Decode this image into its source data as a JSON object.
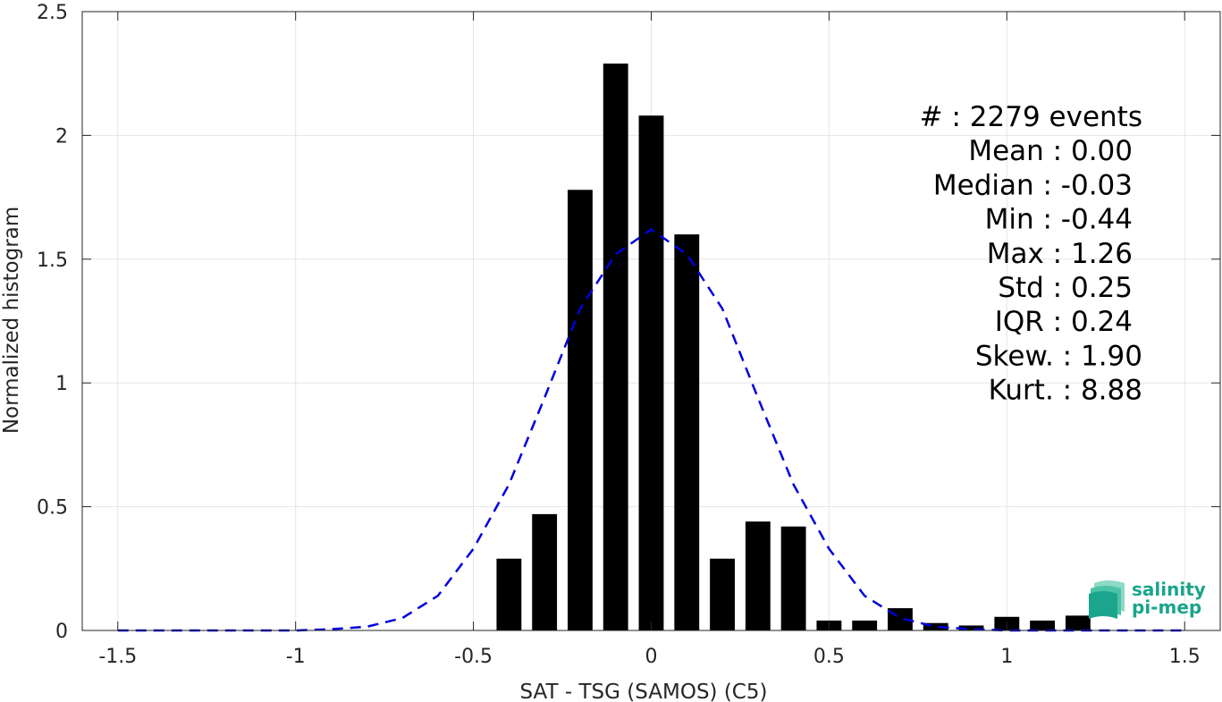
{
  "chart_data": {
    "type": "bar",
    "xlabel": "SAT - TSG (SAMOS) (C5)",
    "ylabel": "Normalized histogram",
    "xlim": [
      -1.6,
      1.6
    ],
    "ylim": [
      0,
      2.5
    ],
    "grid": true,
    "xticks": [
      -1.5,
      -1,
      -0.5,
      0,
      0.5,
      1,
      1.5
    ],
    "xtick_labels": [
      "-1.5",
      "-1",
      "-0.5",
      "0",
      "0.5",
      "1",
      "1.5"
    ],
    "yticks": [
      0,
      0.5,
      1,
      1.5,
      2,
      2.5
    ],
    "ytick_labels": [
      "0",
      "0.5",
      "1",
      "1.5",
      "2",
      "2.5"
    ],
    "bin_width": 0.1,
    "bar_width": 0.07,
    "bars": {
      "x": [
        -0.4,
        -0.3,
        -0.2,
        -0.1,
        0.0,
        0.1,
        0.2,
        0.3,
        0.4,
        0.5,
        0.6,
        0.7,
        0.8,
        0.9,
        1.0,
        1.1,
        1.2
      ],
      "values": [
        0.29,
        0.47,
        1.78,
        2.29,
        2.08,
        1.6,
        0.29,
        0.44,
        0.42,
        0.04,
        0.04,
        0.09,
        0.03,
        0.02,
        0.055,
        0.04,
        0.06
      ],
      "color": "#000000"
    },
    "fit_curve": {
      "style": "dashed",
      "color": "#0000dd",
      "x": [
        -1.5,
        -1.4,
        -1.3,
        -1.2,
        -1.1,
        -1.0,
        -0.9,
        -0.8,
        -0.7,
        -0.6,
        -0.5,
        -0.4,
        -0.3,
        -0.2,
        -0.1,
        0.0,
        0.1,
        0.2,
        0.3,
        0.4,
        0.5,
        0.6,
        0.7,
        0.8,
        0.9,
        1.0,
        1.1,
        1.2,
        1.3,
        1.4,
        1.5
      ],
      "y": [
        0,
        0,
        0,
        0,
        0,
        0,
        0.005,
        0.015,
        0.05,
        0.14,
        0.33,
        0.59,
        0.94,
        1.3,
        1.52,
        1.62,
        1.52,
        1.3,
        0.94,
        0.59,
        0.33,
        0.14,
        0.05,
        0.015,
        0.005,
        0,
        0,
        0,
        0,
        0,
        0
      ]
    },
    "stats": [
      {
        "label": "#  : 2279 events"
      },
      {
        "label": "Mean : 0.00"
      },
      {
        "label": "Median : -0.03"
      },
      {
        "label": "Min : -0.44"
      },
      {
        "label": "Max : 1.26"
      },
      {
        "label": "Std : 0.25"
      },
      {
        "label": "IQR : 0.24"
      },
      {
        "label": "Skew. : 1.90"
      },
      {
        "label": "Kurt. : 8.88"
      }
    ]
  },
  "logo": {
    "line1": "salinity",
    "line2": "pi-mep",
    "icon": "layered-waves-icon",
    "color": "#1aa58c"
  }
}
